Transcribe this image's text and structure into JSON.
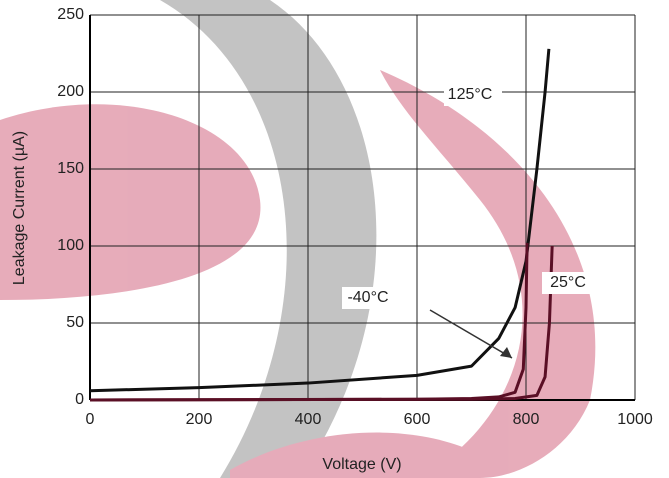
{
  "chart_data": {
    "type": "line",
    "xlabel": "Voltage (V)",
    "ylabel": "Leakage Current (µA)",
    "xlim": [
      0,
      1000
    ],
    "xticks": [
      0,
      200,
      400,
      600,
      800,
      1000
    ],
    "ylim": [
      0,
      250
    ],
    "yticks": [
      0,
      50,
      100,
      150,
      200,
      250
    ],
    "grid": true,
    "series": [
      {
        "name": "125°C",
        "color": "#111111",
        "x": [
          0,
          200,
          400,
          600,
          700,
          750,
          780,
          800,
          820,
          835,
          842
        ],
        "values": [
          6,
          8,
          11,
          16,
          22,
          40,
          60,
          90,
          150,
          200,
          228
        ]
      },
      {
        "name": "25°C",
        "color": "#5a0f25",
        "x": [
          0,
          700,
          780,
          820,
          835,
          843,
          848
        ],
        "values": [
          0,
          0.5,
          1,
          3,
          15,
          50,
          100
        ]
      },
      {
        "name": "-40°C",
        "color": "#5a0f25",
        "x": [
          0,
          600,
          700,
          750,
          780,
          795,
          800,
          802
        ],
        "values": [
          0,
          0.5,
          1,
          2,
          5,
          20,
          60,
          102
        ]
      }
    ]
  }
}
